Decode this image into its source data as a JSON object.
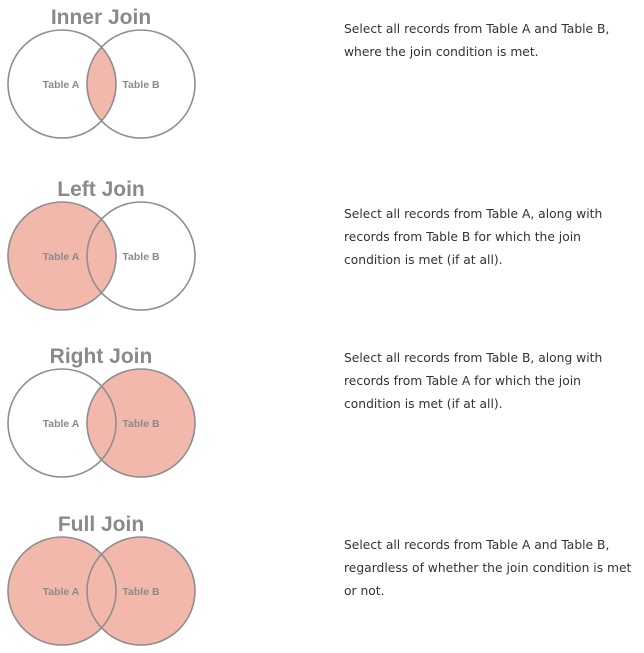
{
  "colors": {
    "fill": "#f2b8ac",
    "stroke": "#8e8e8e",
    "title": "#8a8a8a",
    "text": "#333333"
  },
  "joins": [
    {
      "title": "Inner Join",
      "table_a": "Table A",
      "table_b": "Table B",
      "shaded": "intersection",
      "description": "Select all records from Table A and Table B, where the join condition is met."
    },
    {
      "title": "Left Join",
      "table_a": "Table A",
      "table_b": "Table B",
      "shaded": "a",
      "description": "Select all records from Table A, along with records from Table B for which the join condition is met (if at all)."
    },
    {
      "title": "Right Join",
      "table_a": "Table A",
      "table_b": "Table B",
      "shaded": "b",
      "description": "Select all records from Table B, along with records from Table A for which the join condition is met (if at all)."
    },
    {
      "title": "Full Join",
      "table_a": "Table A",
      "table_b": "Table B",
      "shaded": "both",
      "description": "Select all records from Table A and Table B, regardless of whether the join condition is met or not."
    }
  ]
}
